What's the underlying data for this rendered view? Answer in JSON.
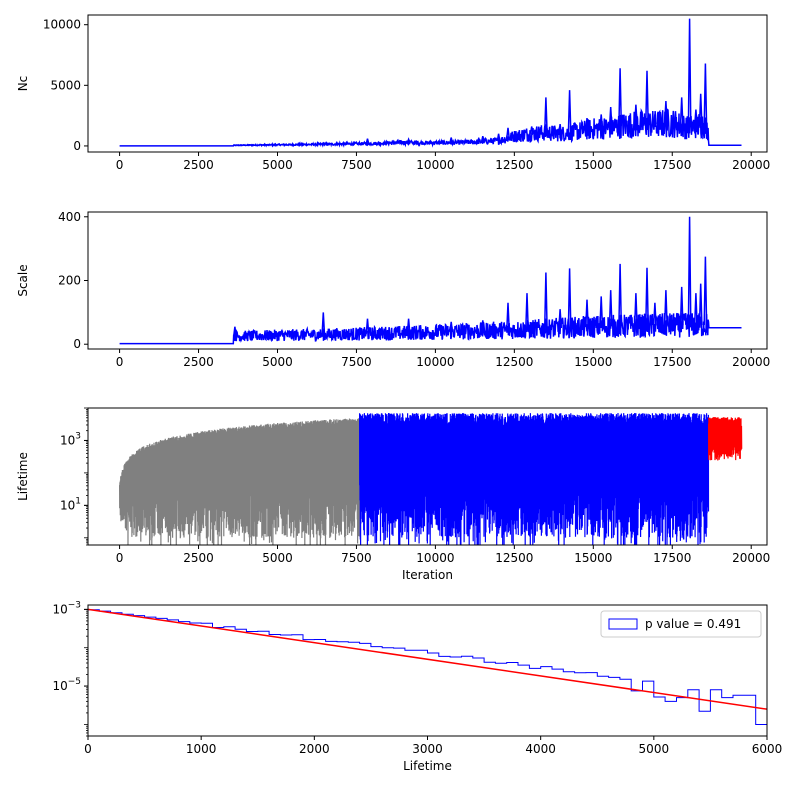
{
  "chart_data": [
    {
      "type": "line",
      "ylabel": "Nc",
      "xlim": [
        -1000,
        20500
      ],
      "ylim": [
        -500,
        10800
      ],
      "xticks": [
        "0",
        "2500",
        "5000",
        "7500",
        "10000",
        "12500",
        "15000",
        "17500",
        "20000"
      ],
      "yticks": [
        "0",
        "5000",
        "10000"
      ],
      "series": [
        {
          "color": "#0000ff",
          "points": [
            [
              0,
              0
            ],
            [
              3600,
              0
            ],
            [
              3600,
              50
            ],
            [
              6000,
              120
            ],
            [
              8000,
              200
            ],
            [
              9000,
              280
            ],
            [
              10000,
              250
            ],
            [
              11000,
              300
            ],
            [
              12000,
              420
            ],
            [
              12500,
              800
            ],
            [
              13000,
              1000
            ],
            [
              13500,
              1100
            ],
            [
              14000,
              1000
            ],
            [
              14500,
              1200
            ],
            [
              15000,
              1400
            ],
            [
              15500,
              1500
            ],
            [
              16000,
              1700
            ],
            [
              16500,
              1800
            ],
            [
              17000,
              1800
            ],
            [
              17500,
              1900
            ],
            [
              18000,
              1500
            ],
            [
              18500,
              1800
            ],
            [
              18650,
              1200
            ],
            [
              18660,
              50
            ],
            [
              19700,
              50
            ]
          ],
          "spikes": [
            [
              6450,
              250
            ],
            [
              7850,
              600
            ],
            [
              9150,
              550
            ],
            [
              10500,
              700
            ],
            [
              11500,
              800
            ],
            [
              12000,
              1000
            ],
            [
              12300,
              1500
            ],
            [
              13050,
              1600
            ],
            [
              13500,
              4000
            ],
            [
              13950,
              1800
            ],
            [
              14250,
              4600
            ],
            [
              14800,
              2300
            ],
            [
              15250,
              2600
            ],
            [
              15550,
              3200
            ],
            [
              15850,
              6400
            ],
            [
              16350,
              3400
            ],
            [
              16700,
              6200
            ],
            [
              16950,
              2600
            ],
            [
              17300,
              3700
            ],
            [
              17800,
              4000
            ],
            [
              18050,
              10500
            ],
            [
              18250,
              3000
            ],
            [
              18400,
              4300
            ],
            [
              18550,
              6800
            ]
          ]
        }
      ]
    },
    {
      "type": "line",
      "ylabel": "Scale",
      "xlim": [
        -1000,
        20500
      ],
      "ylim": [
        -15,
        415
      ],
      "xticks": [
        "0",
        "2500",
        "5000",
        "7500",
        "10000",
        "12500",
        "15000",
        "17500",
        "20000"
      ],
      "yticks": [
        "0",
        "200",
        "400"
      ],
      "series": [
        {
          "color": "#0000ff",
          "points": [
            [
              0,
              2
            ],
            [
              3600,
              2
            ],
            [
              3600,
              25
            ],
            [
              5000,
              28
            ],
            [
              7500,
              32
            ],
            [
              10000,
              38
            ],
            [
              12500,
              45
            ],
            [
              15000,
              55
            ],
            [
              17500,
              60
            ],
            [
              18650,
              60
            ],
            [
              18660,
              52
            ],
            [
              19700,
              52
            ]
          ],
          "spikes": [
            [
              3650,
              55
            ],
            [
              6450,
              100
            ],
            [
              7850,
              80
            ],
            [
              9150,
              80
            ],
            [
              10500,
              70
            ],
            [
              11500,
              75
            ],
            [
              12300,
              130
            ],
            [
              12900,
              160
            ],
            [
              13500,
              225
            ],
            [
              13950,
              110
            ],
            [
              14250,
              238
            ],
            [
              14800,
              140
            ],
            [
              15250,
              150
            ],
            [
              15550,
              170
            ],
            [
              15850,
              252
            ],
            [
              16350,
              160
            ],
            [
              16700,
              240
            ],
            [
              16950,
              130
            ],
            [
              17300,
              170
            ],
            [
              17800,
              180
            ],
            [
              18050,
              400
            ],
            [
              18250,
              160
            ],
            [
              18400,
              190
            ],
            [
              18550,
              275
            ]
          ]
        }
      ]
    },
    {
      "type": "line",
      "ylabel": "Lifetime",
      "xlabel": "Iteration",
      "yscale": "log",
      "xlim": [
        -1000,
        20500
      ],
      "ylim": [
        0.6,
        10000
      ],
      "xticks": [
        "0",
        "2500",
        "5000",
        "7500",
        "10000",
        "12500",
        "15000",
        "17500",
        "20000"
      ],
      "yticks": [
        "10^1",
        "10^3"
      ],
      "series": [
        {
          "color": "#808080",
          "range": [
            0,
            7600
          ],
          "envelope": "growing",
          "max": 5000
        },
        {
          "color": "#0000ff",
          "range": [
            7600,
            18650
          ],
          "envelope": "flat",
          "max": 5000
        },
        {
          "color": "#ff0000",
          "range": [
            18650,
            19700
          ],
          "envelope": "band",
          "min": 300,
          "max": 5000
        }
      ]
    },
    {
      "type": "histogram",
      "xlabel": "Lifetime",
      "yscale": "log",
      "xlim": [
        0,
        6000
      ],
      "ylim": [
        5e-07,
        0.0013
      ],
      "xticks": [
        "0",
        "1000",
        "2000",
        "3000",
        "4000",
        "5000",
        "6000"
      ],
      "yticks": [
        "10^-5",
        "10^-3"
      ],
      "legend": {
        "label": "p value = 0.491",
        "placement": "top-right"
      },
      "bins": {
        "width": 100,
        "values": [
          0.00098,
          0.0009,
          0.00082,
          0.00075,
          0.00069,
          0.00063,
          0.00058,
          0.00053,
          0.00048,
          0.00044,
          0.0004,
          0.00037,
          0.00034,
          0.00031,
          0.00029,
          0.00026,
          0.00024,
          0.00022,
          0.0002,
          0.00018,
          0.00017,
          0.000155,
          0.00014,
          0.00013,
          0.00012,
          0.00011,
          0.0001,
          9.2e-05,
          8.5e-05,
          7.8e-05,
          7.1e-05,
          6.5e-05,
          6e-05,
          5.5e-05,
          5e-05,
          4.6e-05,
          4.2e-05,
          3.9e-05,
          3.5e-05,
          3.2e-05,
          3e-05,
          2.7e-05,
          2.5e-05,
          2.3e-05,
          2.1e-05,
          1.9e-05,
          1.75e-05,
          1.6e-05,
          1.5e-05,
          1.35e-05,
          1.25e-05,
          1.15e-05,
          1.05e-05,
          9.5e-06,
          8.8e-06,
          8e-06,
          7.4e-06,
          6.8e-06,
          6.2e-06,
          5.7e-06
        ],
        "perturb": [
          [
            4700,
            1.5e-05
          ],
          [
            4800,
            7.5e-06
          ],
          [
            5000,
            5.2e-06
          ],
          [
            5100,
            4e-06
          ],
          [
            5200,
            5e-06
          ],
          [
            5300,
            8e-06
          ],
          [
            5400,
            2.2e-06
          ],
          [
            5500,
            8e-06
          ],
          [
            5600,
            5e-06
          ],
          [
            5700,
            5.8e-06
          ],
          [
            5800,
            5.8e-06
          ],
          [
            5900,
            1e-06
          ]
        ]
      },
      "fit_line": {
        "color": "#ff0000",
        "points": [
          [
            0,
            0.001
          ],
          [
            6000,
            2.5e-06
          ]
        ]
      }
    }
  ]
}
